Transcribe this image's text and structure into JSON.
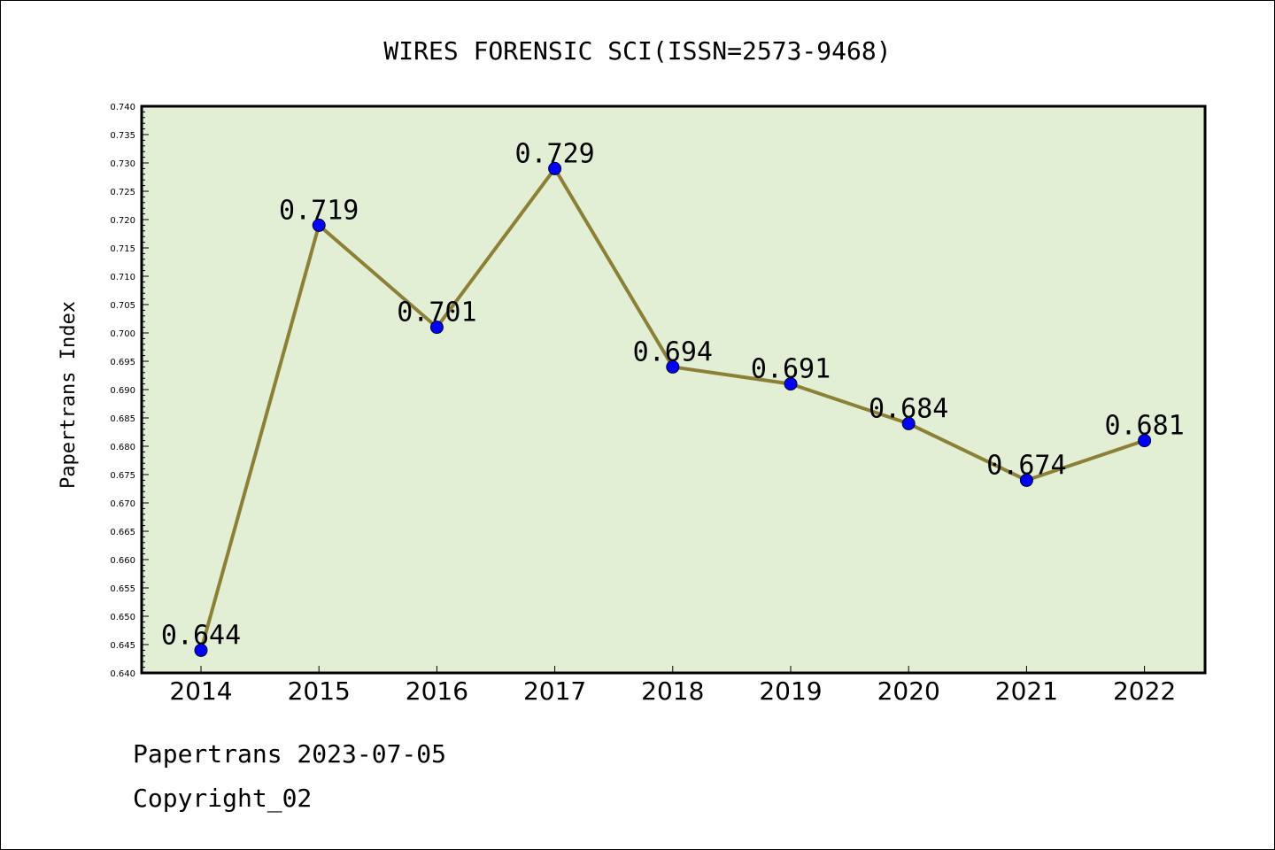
{
  "chart_data": {
    "type": "line",
    "title": "WIRES FORENSIC SCI(ISSN=2573-9468)",
    "ylabel": "Papertrans Index",
    "xlabel": "",
    "categories": [
      "2014",
      "2015",
      "2016",
      "2017",
      "2018",
      "2019",
      "2020",
      "2021",
      "2022"
    ],
    "values": [
      0.644,
      0.719,
      0.701,
      0.729,
      0.694,
      0.691,
      0.684,
      0.674,
      0.681
    ],
    "data_labels": [
      "0.644",
      "0.719",
      "0.701",
      "0.729",
      "0.694",
      "0.691",
      "0.684",
      "0.674",
      "0.681"
    ],
    "ylim": [
      0.64,
      0.74
    ],
    "y_ticks": [
      "0.640",
      "0.645",
      "0.650",
      "0.655",
      "0.660",
      "0.665",
      "0.670",
      "0.675",
      "0.680",
      "0.685",
      "0.690",
      "0.695",
      "0.700",
      "0.705",
      "0.710",
      "0.715",
      "0.720",
      "0.725",
      "0.730",
      "0.735",
      "0.740"
    ],
    "grid": false,
    "colors": {
      "plot_background": "#e2efd5",
      "line": "#8b8036",
      "marker": "#0000ff"
    }
  },
  "footer": {
    "line1": "Papertrans 2023-07-05",
    "line2": "Copyright_02"
  }
}
